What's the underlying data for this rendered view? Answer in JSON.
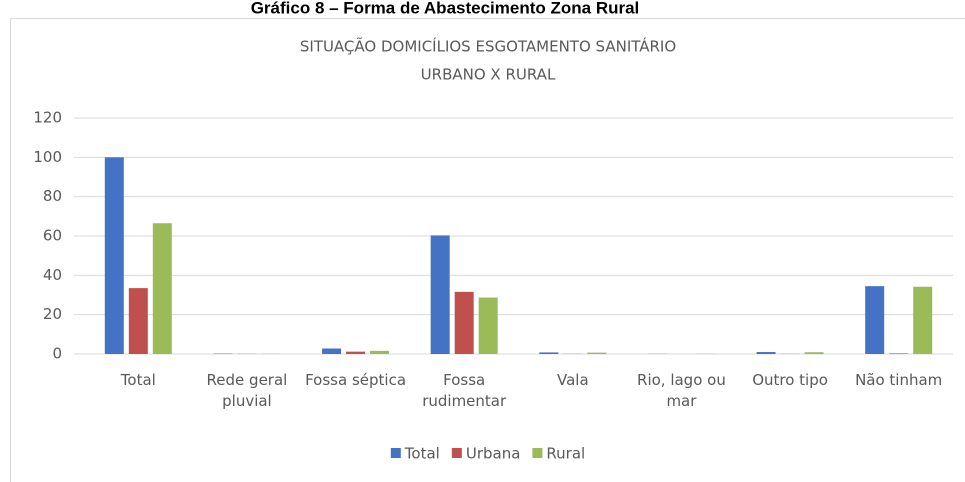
{
  "caption": "Gráfico 8 – Forma de Abastecimento Zona Rural",
  "chart_data": {
    "type": "bar",
    "title": [
      "SITUAÇÃO DOMICÍLIOS ESGOTAMENTO SANITÁRIO",
      "URBANO X RURAL"
    ],
    "categories": [
      "Total",
      "Rede geral pluvial",
      "Fossa séptica",
      "Fossa rudimentar",
      "Vala",
      "Rio, lago ou mar",
      "Outro tipo",
      "Não tinham"
    ],
    "series": [
      {
        "name": "Total",
        "color": "#4472c4",
        "values": [
          100,
          0.2,
          2.8,
          60.3,
          0.8,
          0.1,
          1.0,
          34.5
        ]
      },
      {
        "name": "Urbana",
        "color": "#c0504d",
        "values": [
          33.5,
          0.1,
          1.2,
          31.6,
          0.1,
          0,
          0.1,
          0.3
        ]
      },
      {
        "name": "Rural",
        "color": "#9bbb59",
        "values": [
          66.5,
          0.1,
          1.6,
          28.7,
          0.7,
          0.1,
          0.9,
          34.2
        ]
      }
    ],
    "ylim": [
      0,
      120
    ],
    "yticks": [
      0,
      20,
      40,
      60,
      80,
      100,
      120
    ],
    "grid": true,
    "legend": "bottom"
  }
}
